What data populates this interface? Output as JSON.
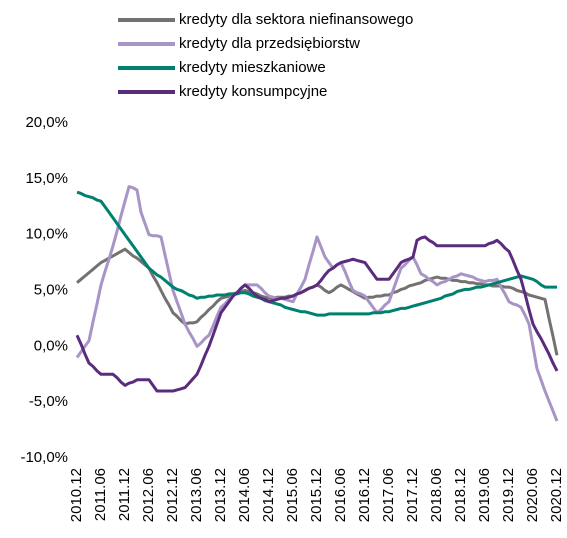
{
  "chart_data": {
    "type": "line",
    "categories": [
      "2010.12",
      null,
      null,
      null,
      null,
      null,
      "2011.06",
      null,
      null,
      null,
      null,
      null,
      "2011.12",
      null,
      null,
      null,
      null,
      null,
      "2012.06",
      null,
      null,
      null,
      null,
      null,
      "2012.12",
      null,
      null,
      null,
      null,
      null,
      "2013.06",
      null,
      null,
      null,
      null,
      null,
      "2013.12",
      null,
      null,
      null,
      null,
      null,
      "2014.06",
      null,
      null,
      null,
      null,
      null,
      "2014.12",
      null,
      null,
      null,
      null,
      null,
      "2015.06",
      null,
      null,
      null,
      null,
      null,
      "2015.12",
      null,
      null,
      null,
      null,
      null,
      "2016.06",
      null,
      null,
      null,
      null,
      null,
      "2016.12",
      null,
      null,
      null,
      null,
      null,
      "2017.06",
      null,
      null,
      null,
      null,
      null,
      "2017.12",
      null,
      null,
      null,
      null,
      null,
      "2018.06",
      null,
      null,
      null,
      null,
      null,
      "2018.12",
      null,
      null,
      null,
      null,
      null,
      "2019.06",
      null,
      null,
      null,
      null,
      null,
      "2019.12",
      null,
      null,
      null,
      null,
      null,
      "2020.06",
      null,
      null,
      null,
      null,
      null,
      "2020.12"
    ],
    "series": [
      {
        "name": "kredyty dla sektora niefinansowego",
        "color": "#767171",
        "values": [
          5.7,
          6.0,
          6.3,
          6.6,
          6.9,
          7.2,
          7.5,
          7.7,
          7.9,
          8.1,
          8.3,
          8.5,
          8.7,
          8.4,
          8.1,
          7.9,
          7.6,
          7.3,
          7.0,
          6.3,
          5.7,
          5.0,
          4.3,
          3.7,
          3.0,
          2.7,
          2.3,
          2.0,
          2.1,
          2.1,
          2.2,
          2.6,
          2.9,
          3.3,
          3.6,
          4.0,
          4.3,
          4.4,
          4.5,
          4.7,
          4.8,
          4.9,
          5.0,
          4.9,
          4.8,
          4.7,
          4.5,
          4.4,
          4.3,
          4.3,
          4.4,
          4.4,
          4.4,
          4.5,
          4.5,
          4.7,
          4.8,
          5.0,
          5.2,
          5.3,
          5.5,
          5.3,
          5.0,
          4.8,
          5.0,
          5.3,
          5.5,
          5.3,
          5.1,
          4.9,
          4.7,
          4.5,
          4.3,
          4.4,
          4.4,
          4.5,
          4.5,
          4.6,
          4.6,
          4.8,
          4.9,
          5.1,
          5.2,
          5.4,
          5.5,
          5.6,
          5.7,
          5.9,
          6.0,
          6.1,
          6.2,
          6.1,
          6.1,
          6.0,
          5.9,
          5.9,
          5.8,
          5.8,
          5.7,
          5.7,
          5.6,
          5.6,
          5.5,
          5.5,
          5.4,
          5.4,
          5.4,
          5.3,
          5.3,
          5.2,
          5.0,
          4.9,
          4.8,
          4.6,
          4.5,
          4.4,
          4.3,
          4.2,
          2.5,
          0.9,
          -0.8
        ]
      },
      {
        "name": "kredyty dla przedsiębiorstw",
        "color": "#a894c6",
        "values": [
          -1.0,
          -0.5,
          0.0,
          0.5,
          2.2,
          3.8,
          5.5,
          6.7,
          7.8,
          9.0,
          10.3,
          11.7,
          13.0,
          14.3,
          14.2,
          14.0,
          12.0,
          11.0,
          10.0,
          9.9,
          9.9,
          9.8,
          8.2,
          6.6,
          5.0,
          4.0,
          3.0,
          2.0,
          1.3,
          0.7,
          0.0,
          0.3,
          0.7,
          1.0,
          1.8,
          2.7,
          3.5,
          3.8,
          4.2,
          4.5,
          4.8,
          5.2,
          5.5,
          5.5,
          5.5,
          5.5,
          5.2,
          4.8,
          4.5,
          4.4,
          4.3,
          4.3,
          4.2,
          4.1,
          4.0,
          4.7,
          5.3,
          6.0,
          7.3,
          8.5,
          9.8,
          8.9,
          8.0,
          7.5,
          7.0,
          7.3,
          7.5,
          6.7,
          5.8,
          5.0,
          4.8,
          4.7,
          4.5,
          4.0,
          3.5,
          3.0,
          3.3,
          3.7,
          4.0,
          5.0,
          6.0,
          7.0,
          7.3,
          7.7,
          8.0,
          7.3,
          6.5,
          6.3,
          6.0,
          5.8,
          5.5,
          5.7,
          5.8,
          6.0,
          6.2,
          6.3,
          6.5,
          6.4,
          6.3,
          6.2,
          6.0,
          5.9,
          5.8,
          5.9,
          5.9,
          6.0,
          5.3,
          4.7,
          4.0,
          3.8,
          3.7,
          3.5,
          2.8,
          2.0,
          0.0,
          -2.0,
          -3.0,
          -4.0,
          -4.9,
          -5.8,
          -6.7
        ]
      },
      {
        "name": "kredyty mieszkaniowe",
        "color": "#00806e",
        "values": [
          13.8,
          13.7,
          13.5,
          13.4,
          13.3,
          13.1,
          13.0,
          12.5,
          12.0,
          11.5,
          11.0,
          10.5,
          10.0,
          9.5,
          9.0,
          8.5,
          8.0,
          7.5,
          7.0,
          6.7,
          6.4,
          6.2,
          5.9,
          5.6,
          5.3,
          5.1,
          5.0,
          4.8,
          4.6,
          4.5,
          4.3,
          4.4,
          4.4,
          4.5,
          4.5,
          4.6,
          4.6,
          4.6,
          4.7,
          4.7,
          4.7,
          4.8,
          4.8,
          4.7,
          4.5,
          4.4,
          4.3,
          4.1,
          4.0,
          3.9,
          3.8,
          3.7,
          3.5,
          3.4,
          3.3,
          3.2,
          3.1,
          3.1,
          3.0,
          2.9,
          2.8,
          2.8,
          2.8,
          2.9,
          2.9,
          2.9,
          2.9,
          2.9,
          2.9,
          2.9,
          2.9,
          2.9,
          2.9,
          2.9,
          3.0,
          3.0,
          3.0,
          3.1,
          3.1,
          3.2,
          3.3,
          3.4,
          3.4,
          3.5,
          3.6,
          3.7,
          3.8,
          3.9,
          4.0,
          4.1,
          4.2,
          4.3,
          4.5,
          4.6,
          4.7,
          4.9,
          5.0,
          5.1,
          5.1,
          5.2,
          5.3,
          5.3,
          5.4,
          5.5,
          5.6,
          5.7,
          5.8,
          5.9,
          6.0,
          6.1,
          6.2,
          6.3,
          6.2,
          6.1,
          6.0,
          5.8,
          5.5,
          5.3,
          5.3,
          5.3,
          5.3
        ]
      },
      {
        "name": "kredyty konsumpcyjne",
        "color": "#5b2c7e",
        "values": [
          1.0,
          0.2,
          -0.7,
          -1.5,
          -1.8,
          -2.2,
          -2.5,
          -2.5,
          -2.5,
          -2.5,
          -2.8,
          -3.2,
          -3.5,
          -3.3,
          -3.2,
          -3.0,
          -3.0,
          -3.0,
          -3.0,
          -3.5,
          -4.0,
          -4.0,
          -4.0,
          -4.0,
          -4.0,
          -3.9,
          -3.8,
          -3.7,
          -3.3,
          -2.9,
          -2.5,
          -1.7,
          -0.8,
          0.0,
          1.0,
          2.0,
          3.0,
          3.5,
          4.0,
          4.5,
          4.8,
          5.2,
          5.5,
          5.2,
          4.8,
          4.5,
          4.3,
          4.2,
          4.0,
          4.1,
          4.2,
          4.3,
          4.3,
          4.4,
          4.5,
          4.7,
          4.8,
          5.0,
          5.2,
          5.3,
          5.5,
          5.9,
          6.4,
          6.8,
          7.0,
          7.3,
          7.5,
          7.6,
          7.7,
          7.8,
          7.7,
          7.6,
          7.5,
          7.0,
          6.5,
          6.0,
          6.0,
          6.0,
          6.0,
          6.5,
          7.0,
          7.5,
          7.7,
          7.8,
          8.0,
          9.5,
          9.7,
          9.8,
          9.5,
          9.3,
          9.0,
          9.0,
          9.0,
          9.0,
          9.0,
          9.0,
          9.0,
          9.0,
          9.0,
          9.0,
          9.0,
          9.0,
          9.0,
          9.2,
          9.3,
          9.5,
          9.2,
          8.8,
          8.5,
          7.7,
          6.8,
          6.0,
          4.7,
          3.3,
          2.0,
          1.3,
          0.7,
          0.0,
          -0.7,
          -1.5,
          -2.2
        ]
      }
    ],
    "ylim": [
      -10,
      20
    ],
    "yticks": [
      {
        "value": -10,
        "label": "-10,0%"
      },
      {
        "value": -5,
        "label": "-5,0%"
      },
      {
        "value": 0,
        "label": "0,0%"
      },
      {
        "value": 5,
        "label": "5,0%"
      },
      {
        "value": 10,
        "label": "10,0%"
      },
      {
        "value": 15,
        "label": "15,0%"
      },
      {
        "value": 20,
        "label": "20,0%"
      }
    ],
    "grid": false
  }
}
